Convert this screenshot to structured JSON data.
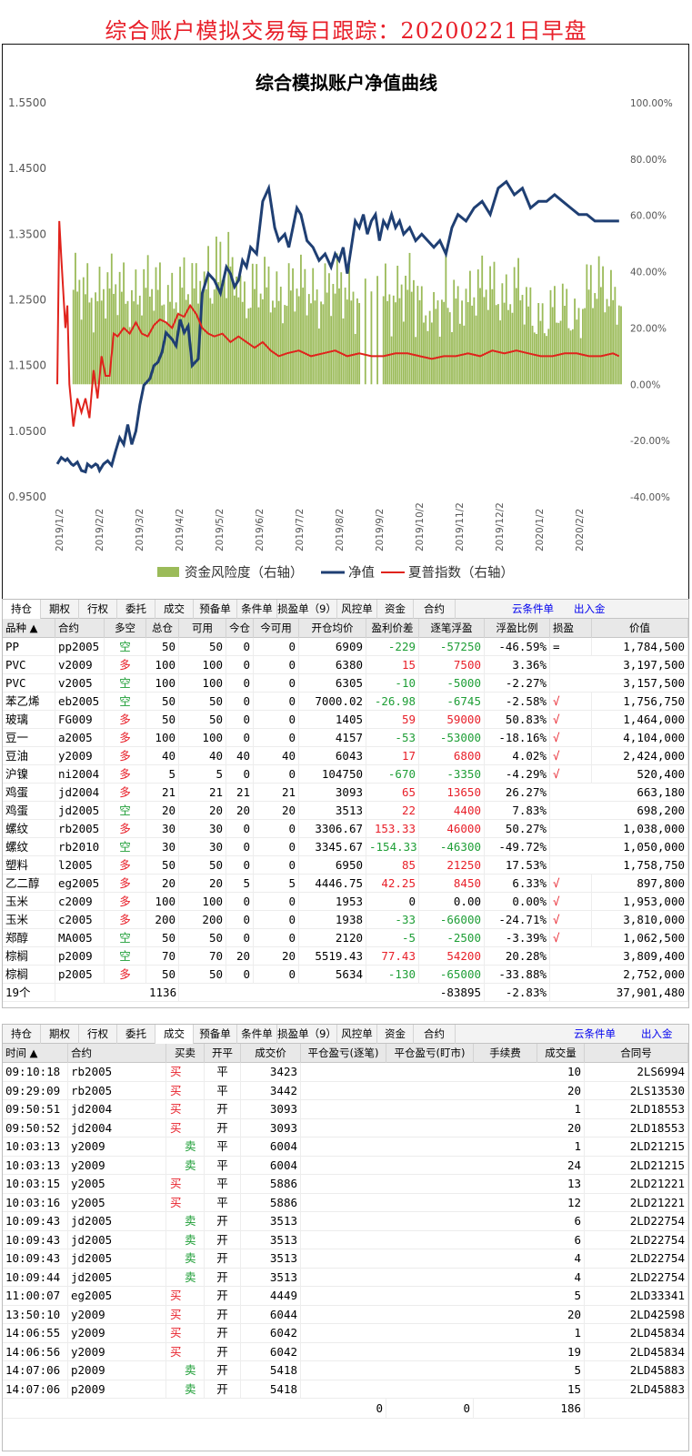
{
  "page_title": "综合账户模拟交易每日跟踪：20200221日早盘",
  "chart_data": {
    "type": "line",
    "title": "综合模拟账户净值曲线",
    "left_axis": {
      "ticks": [
        "1.5500",
        "1.4500",
        "1.3500",
        "1.2500",
        "1.1500",
        "1.0500",
        "0.9500"
      ],
      "ylim": [
        0.95,
        1.55
      ]
    },
    "right_axis": {
      "ticks": [
        "100.00%",
        "80.00%",
        "60.00%",
        "40.00%",
        "20.00%",
        "0.00%",
        "-20.00%",
        "-40.00%"
      ],
      "ylim": [
        -40,
        100
      ]
    },
    "x_ticks": [
      "2019/1/2",
      "2019/2/2",
      "2019/3/2",
      "2019/4/2",
      "2019/5/2",
      "2019/6/2",
      "2019/7/2",
      "2019/8/2",
      "2019/9/2",
      "2019/10/2",
      "2019/11/2",
      "2019/12/2",
      "2020/1/2",
      "2020/2/2"
    ],
    "legend": [
      "资金风险度（右轴）",
      "净值",
      "夏普指数（右轴）"
    ],
    "legend_position": "bottom",
    "colors": {
      "risk": "#9bbb59",
      "nav": "#1f3f73",
      "sharpe": "#e0231c"
    },
    "series": [
      {
        "name": "净值",
        "x": [
          0,
          2,
          4,
          5,
          7,
          8,
          10,
          12,
          14,
          15,
          17,
          19,
          20,
          21,
          23,
          25,
          27,
          29,
          31,
          33,
          35,
          37,
          39,
          41,
          43,
          46,
          48,
          50,
          52,
          54,
          57,
          59,
          61,
          63,
          65,
          67,
          70,
          72,
          75,
          78,
          81,
          84,
          86,
          88,
          90,
          92,
          94,
          96,
          99,
          102,
          105,
          108,
          110,
          113,
          115,
          117,
          119,
          121,
          124,
          127,
          130,
          133,
          136,
          138,
          140,
          142,
          144,
          146,
          148,
          150,
          152,
          154,
          156,
          158,
          160,
          162,
          164,
          166,
          168,
          170,
          172,
          175,
          178,
          181,
          184,
          187,
          190,
          193,
          196,
          199,
          203,
          207,
          211,
          215,
          219,
          223,
          227,
          231,
          235,
          239,
          243,
          247,
          251,
          255,
          259,
          263,
          267,
          271,
          275,
          279
        ],
        "y": [
          1.0,
          1.01,
          1.005,
          1.008,
          1.0,
          0.998,
          1.003,
          0.99,
          0.988,
          1.0,
          0.995,
          1.0,
          0.998,
          0.99,
          1.0,
          1.005,
          0.998,
          1.02,
          1.04,
          1.03,
          1.06,
          1.03,
          1.05,
          1.09,
          1.12,
          1.13,
          1.15,
          1.155,
          1.17,
          1.2,
          1.19,
          1.18,
          1.22,
          1.2,
          1.21,
          1.15,
          1.16,
          1.26,
          1.29,
          1.28,
          1.26,
          1.3,
          1.29,
          1.27,
          1.28,
          1.31,
          1.3,
          1.33,
          1.32,
          1.4,
          1.42,
          1.36,
          1.34,
          1.35,
          1.33,
          1.36,
          1.39,
          1.38,
          1.34,
          1.33,
          1.31,
          1.32,
          1.3,
          1.32,
          1.31,
          1.33,
          1.29,
          1.33,
          1.37,
          1.36,
          1.38,
          1.35,
          1.37,
          1.38,
          1.34,
          1.37,
          1.36,
          1.38,
          1.36,
          1.37,
          1.35,
          1.36,
          1.34,
          1.35,
          1.34,
          1.33,
          1.34,
          1.32,
          1.36,
          1.38,
          1.37,
          1.39,
          1.4,
          1.38,
          1.42,
          1.43,
          1.41,
          1.42,
          1.39,
          1.4,
          1.4,
          1.41,
          1.4,
          1.39,
          1.38,
          1.38,
          1.37,
          1.37,
          1.37,
          1.37
        ]
      },
      {
        "name": "夏普指数（右轴）",
        "x": [
          0,
          1,
          2,
          4,
          5,
          6,
          8,
          10,
          12,
          14,
          16,
          18,
          20,
          22,
          24,
          26,
          28,
          30,
          33,
          36,
          39,
          42,
          45,
          48,
          51,
          54,
          57,
          60,
          63,
          66,
          69,
          72,
          75,
          78,
          82,
          86,
          90,
          94,
          98,
          102,
          106,
          110,
          114,
          120,
          126,
          132,
          138,
          144,
          150,
          156,
          162,
          168,
          174,
          180,
          186,
          192,
          198,
          204,
          210,
          216,
          222,
          228,
          234,
          240,
          246,
          252,
          258,
          264,
          270,
          276,
          279
        ],
        "y": [
          0,
          58,
          45,
          20,
          28,
          0,
          -15,
          -5,
          -10,
          -5,
          -12,
          5,
          -5,
          10,
          3,
          3,
          18,
          17,
          20,
          18,
          22,
          18,
          17,
          21,
          23,
          22,
          20,
          25,
          24,
          28,
          25,
          20,
          18,
          17,
          18,
          15,
          17,
          15,
          13,
          15,
          12,
          10,
          11,
          12,
          10,
          11,
          12,
          10,
          11,
          10,
          10,
          11,
          11,
          10,
          9,
          10,
          10,
          11,
          10,
          12,
          11,
          12,
          11,
          10,
          10,
          11,
          11,
          10,
          10,
          11,
          10
        ]
      },
      {
        "name": "资金风险度（右轴）"
      }
    ]
  },
  "pos_tabs": [
    "持仓",
    "期权",
    "行权",
    "委托",
    "成交",
    "预备单",
    "条件单",
    "损盈单（9）",
    "风控单",
    "资金",
    "合约"
  ],
  "pos_links": [
    "云条件单",
    "出入金"
  ],
  "pos_headers": [
    "品种 ▲",
    "合约",
    "多空",
    "总仓",
    "可用",
    "今仓",
    "今可用",
    "开仓均价",
    "盈利价差",
    "逐笔浮盈",
    "浮盈比例",
    "损盈",
    "价值"
  ],
  "positions": [
    [
      "PP",
      "pp2005",
      "空",
      "50",
      "50",
      "0",
      "0",
      "6909",
      "-229",
      "-57250",
      "-46.59%",
      "=",
      "1,784,500"
    ],
    [
      "PVC",
      "v2009",
      "多",
      "100",
      "100",
      "0",
      "0",
      "6380",
      "15",
      "7500",
      "3.36%",
      "",
      "3,197,500"
    ],
    [
      "PVC",
      "v2005",
      "空",
      "100",
      "100",
      "0",
      "0",
      "6305",
      "-10",
      "-5000",
      "-2.27%",
      "",
      "3,157,500"
    ],
    [
      "苯乙烯",
      "eb2005",
      "空",
      "50",
      "50",
      "0",
      "0",
      "7000.02",
      "-26.98",
      "-6745",
      "-2.58%",
      "√",
      "1,756,750"
    ],
    [
      "玻璃",
      "FG009",
      "多",
      "50",
      "50",
      "0",
      "0",
      "1405",
      "59",
      "59000",
      "50.83%",
      "√",
      "1,464,000"
    ],
    [
      "豆一",
      "a2005",
      "多",
      "100",
      "100",
      "0",
      "0",
      "4157",
      "-53",
      "-53000",
      "-18.16%",
      "√",
      "4,104,000"
    ],
    [
      "豆油",
      "y2009",
      "多",
      "40",
      "40",
      "40",
      "40",
      "6043",
      "17",
      "6800",
      "4.02%",
      "√",
      "2,424,000"
    ],
    [
      "沪镍",
      "ni2004",
      "多",
      "5",
      "5",
      "0",
      "0",
      "104750",
      "-670",
      "-3350",
      "-4.29%",
      "√",
      "520,400"
    ],
    [
      "鸡蛋",
      "jd2004",
      "多",
      "21",
      "21",
      "21",
      "21",
      "3093",
      "65",
      "13650",
      "26.27%",
      "",
      "663,180"
    ],
    [
      "鸡蛋",
      "jd2005",
      "空",
      "20",
      "20",
      "20",
      "20",
      "3513",
      "22",
      "4400",
      "7.83%",
      "",
      "698,200"
    ],
    [
      "螺纹",
      "rb2005",
      "多",
      "30",
      "30",
      "0",
      "0",
      "3306.67",
      "153.33",
      "46000",
      "50.27%",
      "",
      "1,038,000"
    ],
    [
      "螺纹",
      "rb2010",
      "空",
      "30",
      "30",
      "0",
      "0",
      "3345.67",
      "-154.33",
      "-46300",
      "-49.72%",
      "",
      "1,050,000"
    ],
    [
      "塑料",
      "l2005",
      "多",
      "50",
      "50",
      "0",
      "0",
      "6950",
      "85",
      "21250",
      "17.53%",
      "",
      "1,758,750"
    ],
    [
      "乙二醇",
      "eg2005",
      "多",
      "20",
      "20",
      "5",
      "5",
      "4446.75",
      "42.25",
      "8450",
      "6.33%",
      "√",
      "897,800"
    ],
    [
      "玉米",
      "c2009",
      "多",
      "100",
      "100",
      "0",
      "0",
      "1953",
      "0",
      "0.00",
      "0.00%",
      "√",
      "1,953,000"
    ],
    [
      "玉米",
      "c2005",
      "多",
      "200",
      "200",
      "0",
      "0",
      "1938",
      "-33",
      "-66000",
      "-24.71%",
      "√",
      "3,810,000"
    ],
    [
      "郑醇",
      "MA005",
      "空",
      "50",
      "50",
      "0",
      "0",
      "2120",
      "-5",
      "-2500",
      "-3.39%",
      "√",
      "1,062,500"
    ],
    [
      "棕榈",
      "p2009",
      "空",
      "70",
      "70",
      "20",
      "20",
      "5519.43",
      "77.43",
      "54200",
      "20.28%",
      "",
      "3,809,400"
    ],
    [
      "棕榈",
      "p2005",
      "多",
      "50",
      "50",
      "0",
      "0",
      "5634",
      "-130",
      "-65000",
      "-33.88%",
      "",
      "2,752,000"
    ]
  ],
  "pos_total": {
    "count": "19个",
    "total": "1136",
    "float": "-83895",
    "ratio": "-2.83%",
    "value": "37,901,480"
  },
  "trade_tabs": [
    "持仓",
    "期权",
    "行权",
    "委托",
    "成交",
    "预备单",
    "条件单",
    "损盈单（9）",
    "风控单",
    "资金",
    "合约"
  ],
  "trade_links": [
    "云条件单",
    "出入金"
  ],
  "trade_headers": [
    "时间 ▲",
    "合约",
    "买卖",
    "开平",
    "成交价",
    "平仓盈亏(逐笔)",
    "平仓盈亏(盯市)",
    "手续费",
    "成交量",
    "合同号"
  ],
  "trades": [
    [
      "09:10:18",
      "rb2005",
      "买",
      "平",
      "3423",
      "10",
      "2LS6994"
    ],
    [
      "09:29:09",
      "rb2005",
      "买",
      "平",
      "3442",
      "20",
      "2LS13530"
    ],
    [
      "09:50:51",
      "jd2004",
      "买",
      "开",
      "3093",
      "1",
      "2LD18553"
    ],
    [
      "09:50:52",
      "jd2004",
      "买",
      "开",
      "3093",
      "20",
      "2LD18553"
    ],
    [
      "10:03:13",
      "y2009",
      "卖",
      "平",
      "6004",
      "1",
      "2LD21215"
    ],
    [
      "10:03:13",
      "y2009",
      "卖",
      "平",
      "6004",
      "24",
      "2LD21215"
    ],
    [
      "10:03:15",
      "y2005",
      "买",
      "平",
      "5886",
      "13",
      "2LD21221"
    ],
    [
      "10:03:16",
      "y2005",
      "买",
      "平",
      "5886",
      "12",
      "2LD21221"
    ],
    [
      "10:09:43",
      "jd2005",
      "卖",
      "开",
      "3513",
      "6",
      "2LD22754"
    ],
    [
      "10:09:43",
      "jd2005",
      "卖",
      "开",
      "3513",
      "6",
      "2LD22754"
    ],
    [
      "10:09:43",
      "jd2005",
      "卖",
      "开",
      "3513",
      "4",
      "2LD22754"
    ],
    [
      "10:09:44",
      "jd2005",
      "卖",
      "开",
      "3513",
      "4",
      "2LD22754"
    ],
    [
      "11:00:07",
      "eg2005",
      "买",
      "开",
      "4449",
      "5",
      "2LD33341"
    ],
    [
      "13:50:10",
      "y2009",
      "买",
      "开",
      "6044",
      "20",
      "2LD42598"
    ],
    [
      "14:06:55",
      "y2009",
      "买",
      "开",
      "6042",
      "1",
      "2LD45834"
    ],
    [
      "14:06:56",
      "y2009",
      "买",
      "开",
      "6042",
      "19",
      "2LD45834"
    ],
    [
      "14:07:06",
      "p2009",
      "卖",
      "开",
      "5418",
      "5",
      "2LD45883"
    ],
    [
      "14:07:06",
      "p2009",
      "卖",
      "开",
      "5418",
      "15",
      "2LD45883"
    ]
  ],
  "trade_total": {
    "pnl1": "0",
    "pnl2": "0",
    "volume": "186"
  }
}
